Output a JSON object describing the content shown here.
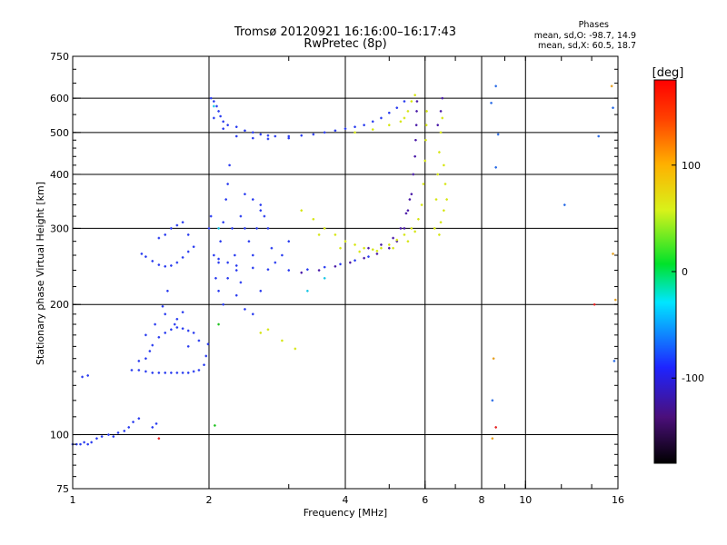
{
  "chart_data": {
    "type": "scatter",
    "title": "Tromsø 20120921 16:16:00–16:17:43",
    "subtitle": "RwPretec (8p)",
    "xlabel": "Frequency [MHz]",
    "ylabel": "Stationary phase Virtual Height [km]",
    "xscale": "log",
    "yscale": "log",
    "xlim": [
      1,
      16
    ],
    "ylim": [
      75,
      750
    ],
    "x_ticks": [
      1,
      2,
      4,
      6,
      8,
      10,
      16
    ],
    "x_tick_labels": [
      "1",
      "2",
      "4",
      "6",
      "8",
      "10",
      "16"
    ],
    "y_ticks": [
      75,
      100,
      200,
      300,
      400,
      500,
      600,
      750
    ],
    "y_tick_labels": [
      "75",
      "100",
      "200",
      "300",
      "400",
      "500",
      "600",
      "750"
    ],
    "grid": true,
    "grid_x": [
      2,
      4,
      6,
      8,
      10
    ],
    "grid_y": [
      100,
      200,
      300,
      400,
      500,
      600
    ],
    "phase_stats": {
      "heading": "Phases",
      "line_o": "mean, sd,O: -98.7, 14.9",
      "line_x": "mean, sd,X:  60.5, 18.7"
    },
    "colorbar": {
      "label": "[deg]",
      "range": [
        -180,
        180
      ],
      "ticks": [
        100,
        0,
        -100
      ],
      "tick_labels": [
        "100",
        "0",
        "-100"
      ]
    },
    "series": [
      {
        "color": "#2a3cf0",
        "points": [
          [
            1.0,
            95
          ],
          [
            1.02,
            95
          ],
          [
            1.04,
            95
          ],
          [
            1.06,
            96
          ],
          [
            1.08,
            95
          ],
          [
            1.1,
            96
          ],
          [
            1.13,
            98
          ],
          [
            1.16,
            99
          ],
          [
            1.2,
            100
          ],
          [
            1.23,
            99
          ],
          [
            1.26,
            101
          ],
          [
            1.3,
            102
          ],
          [
            1.33,
            104
          ],
          [
            1.36,
            107
          ],
          [
            1.4,
            109
          ],
          [
            1.5,
            104
          ],
          [
            1.53,
            106
          ],
          [
            1.05,
            136
          ],
          [
            1.08,
            137
          ],
          [
            1.35,
            141
          ],
          [
            1.4,
            141
          ],
          [
            1.45,
            140
          ],
          [
            1.5,
            139
          ],
          [
            1.55,
            139
          ],
          [
            1.6,
            139
          ],
          [
            1.65,
            139
          ],
          [
            1.7,
            139
          ],
          [
            1.75,
            139
          ],
          [
            1.8,
            139
          ],
          [
            1.85,
            140
          ],
          [
            1.9,
            141
          ],
          [
            1.95,
            145
          ],
          [
            1.97,
            152
          ],
          [
            1.99,
            162
          ],
          [
            1.4,
            148
          ],
          [
            1.45,
            150
          ],
          [
            1.48,
            156
          ],
          [
            1.5,
            161
          ],
          [
            1.55,
            168
          ],
          [
            1.6,
            172
          ],
          [
            1.65,
            175
          ],
          [
            1.7,
            177
          ],
          [
            1.75,
            176
          ],
          [
            1.8,
            174
          ],
          [
            1.85,
            172
          ],
          [
            1.9,
            165
          ],
          [
            1.45,
            170
          ],
          [
            1.52,
            180
          ],
          [
            1.6,
            190
          ],
          [
            1.58,
            198
          ],
          [
            1.62,
            215
          ],
          [
            1.7,
            185
          ],
          [
            1.8,
            160
          ],
          [
            1.68,
            180
          ],
          [
            1.75,
            192
          ],
          [
            1.42,
            262
          ],
          [
            1.45,
            258
          ],
          [
            1.5,
            252
          ],
          [
            1.55,
            247
          ],
          [
            1.6,
            245
          ],
          [
            1.65,
            246
          ],
          [
            1.7,
            250
          ],
          [
            1.75,
            257
          ],
          [
            1.8,
            265
          ],
          [
            1.85,
            272
          ],
          [
            1.55,
            285
          ],
          [
            1.6,
            290
          ],
          [
            1.65,
            300
          ],
          [
            1.7,
            305
          ],
          [
            1.75,
            310
          ],
          [
            1.8,
            290
          ],
          [
            2.0,
            300
          ],
          [
            2.02,
            320
          ],
          [
            2.05,
            260
          ],
          [
            2.07,
            230
          ],
          [
            2.1,
            215
          ],
          [
            2.12,
            280
          ],
          [
            2.15,
            310
          ],
          [
            2.18,
            350
          ],
          [
            2.2,
            380
          ],
          [
            2.22,
            420
          ],
          [
            2.25,
            300
          ],
          [
            2.28,
            260
          ],
          [
            2.3,
            240
          ],
          [
            2.35,
            320
          ],
          [
            2.4,
            300
          ],
          [
            2.45,
            280
          ],
          [
            2.5,
            260
          ],
          [
            2.55,
            300
          ],
          [
            2.6,
            340
          ],
          [
            2.65,
            320
          ],
          [
            2.7,
            300
          ],
          [
            2.75,
            270
          ],
          [
            2.8,
            250
          ],
          [
            2.9,
            260
          ],
          [
            3.0,
            280
          ],
          [
            2.4,
            360
          ],
          [
            2.5,
            350
          ],
          [
            2.6,
            330
          ],
          [
            2.3,
            210
          ],
          [
            2.4,
            195
          ],
          [
            2.5,
            190
          ],
          [
            2.6,
            215
          ],
          [
            2.2,
            230
          ],
          [
            2.1,
            250
          ],
          [
            2.15,
            200
          ],
          [
            2.35,
            225
          ],
          [
            2.02,
            600
          ],
          [
            2.05,
            590
          ],
          [
            2.08,
            575
          ],
          [
            2.1,
            560
          ],
          [
            2.12,
            545
          ],
          [
            2.15,
            530
          ],
          [
            2.2,
            520
          ],
          [
            2.3,
            515
          ],
          [
            2.4,
            505
          ],
          [
            2.5,
            500
          ],
          [
            2.6,
            495
          ],
          [
            2.7,
            492
          ],
          [
            2.8,
            490
          ],
          [
            3.0,
            490
          ],
          [
            3.2,
            492
          ],
          [
            3.4,
            495
          ],
          [
            3.6,
            500
          ],
          [
            3.8,
            505
          ],
          [
            4.0,
            510
          ],
          [
            4.2,
            515
          ],
          [
            4.4,
            520
          ],
          [
            4.6,
            530
          ],
          [
            4.8,
            540
          ],
          [
            5.0,
            555
          ],
          [
            5.2,
            570
          ],
          [
            5.4,
            590
          ],
          [
            2.05,
            540
          ],
          [
            2.15,
            510
          ],
          [
            2.3,
            490
          ],
          [
            2.5,
            485
          ],
          [
            2.7,
            483
          ],
          [
            3.0,
            485
          ],
          [
            2.1,
            255
          ],
          [
            2.2,
            250
          ],
          [
            2.3,
            246
          ],
          [
            2.5,
            243
          ],
          [
            2.7,
            241
          ],
          [
            3.0,
            240
          ],
          [
            3.3,
            241
          ],
          [
            3.6,
            244
          ],
          [
            3.9,
            248
          ],
          [
            4.2,
            253
          ],
          [
            4.5,
            258
          ]
        ]
      },
      {
        "color": "#4a1aa8",
        "points": [
          [
            3.2,
            237
          ],
          [
            3.5,
            240
          ],
          [
            3.8,
            245
          ],
          [
            4.1,
            250
          ],
          [
            4.4,
            256
          ],
          [
            4.7,
            262
          ],
          [
            5.0,
            270
          ],
          [
            5.2,
            280
          ],
          [
            5.4,
            300
          ],
          [
            5.5,
            330
          ],
          [
            5.6,
            360
          ],
          [
            5.65,
            400
          ],
          [
            5.7,
            440
          ],
          [
            5.72,
            480
          ],
          [
            5.74,
            520
          ],
          [
            5.75,
            560
          ],
          [
            5.76,
            590
          ],
          [
            4.5,
            270
          ],
          [
            4.8,
            275
          ],
          [
            5.1,
            285
          ],
          [
            5.3,
            300
          ],
          [
            5.45,
            325
          ],
          [
            5.55,
            350
          ],
          [
            6.4,
            520
          ],
          [
            6.5,
            560
          ],
          [
            6.55,
            600
          ]
        ]
      },
      {
        "color": "#d6e614",
        "points": [
          [
            3.2,
            330
          ],
          [
            3.4,
            315
          ],
          [
            3.6,
            300
          ],
          [
            3.8,
            290
          ],
          [
            4.0,
            280
          ],
          [
            4.2,
            275
          ],
          [
            4.4,
            270
          ],
          [
            4.6,
            268
          ],
          [
            4.8,
            270
          ],
          [
            5.0,
            275
          ],
          [
            5.2,
            282
          ],
          [
            5.4,
            290
          ],
          [
            5.6,
            300
          ],
          [
            5.8,
            315
          ],
          [
            5.9,
            340
          ],
          [
            5.95,
            380
          ],
          [
            6.0,
            430
          ],
          [
            6.02,
            480
          ],
          [
            6.04,
            520
          ],
          [
            6.05,
            560
          ],
          [
            3.5,
            290
          ],
          [
            3.9,
            270
          ],
          [
            4.3,
            265
          ],
          [
            4.7,
            266
          ],
          [
            5.1,
            270
          ],
          [
            5.5,
            280
          ],
          [
            5.7,
            295
          ],
          [
            5.5,
            560
          ],
          [
            5.6,
            590
          ],
          [
            5.7,
            610
          ],
          [
            5.4,
            540
          ],
          [
            5.3,
            530
          ],
          [
            5.0,
            520
          ],
          [
            4.6,
            508
          ],
          [
            4.2,
            500
          ],
          [
            6.3,
            300
          ],
          [
            6.35,
            350
          ],
          [
            6.4,
            400
          ],
          [
            6.45,
            450
          ],
          [
            6.5,
            500
          ],
          [
            6.55,
            540
          ],
          [
            6.6,
            420
          ],
          [
            6.65,
            380
          ],
          [
            6.7,
            350
          ],
          [
            6.6,
            330
          ],
          [
            6.5,
            310
          ],
          [
            6.45,
            290
          ],
          [
            2.6,
            172
          ],
          [
            2.7,
            175
          ],
          [
            2.9,
            165
          ],
          [
            3.1,
            158
          ]
        ]
      },
      {
        "color": "#1cc8e6",
        "points": [
          [
            3.6,
            230
          ],
          [
            3.3,
            215
          ],
          [
            2.05,
            575
          ],
          [
            2.1,
            300
          ]
        ]
      },
      {
        "color": "#22c322",
        "points": [
          [
            2.06,
            105
          ],
          [
            2.1,
            180
          ]
        ]
      },
      {
        "color": "#e62222",
        "points": [
          [
            1.55,
            98
          ],
          [
            8.6,
            104
          ],
          [
            14.2,
            200
          ]
        ]
      },
      {
        "color": "#2a6ce6",
        "points": [
          [
            8.4,
            585
          ],
          [
            8.6,
            640
          ],
          [
            8.7,
            495
          ],
          [
            8.6,
            415
          ],
          [
            8.45,
            120
          ],
          [
            12.2,
            340
          ],
          [
            14.5,
            490
          ],
          [
            15.6,
            570
          ],
          [
            15.7,
            148
          ]
        ]
      },
      {
        "color": "#e6a020",
        "points": [
          [
            8.5,
            150
          ],
          [
            8.45,
            98
          ],
          [
            15.5,
            640
          ],
          [
            15.8,
            205
          ],
          [
            15.6,
            262
          ]
        ]
      }
    ]
  }
}
